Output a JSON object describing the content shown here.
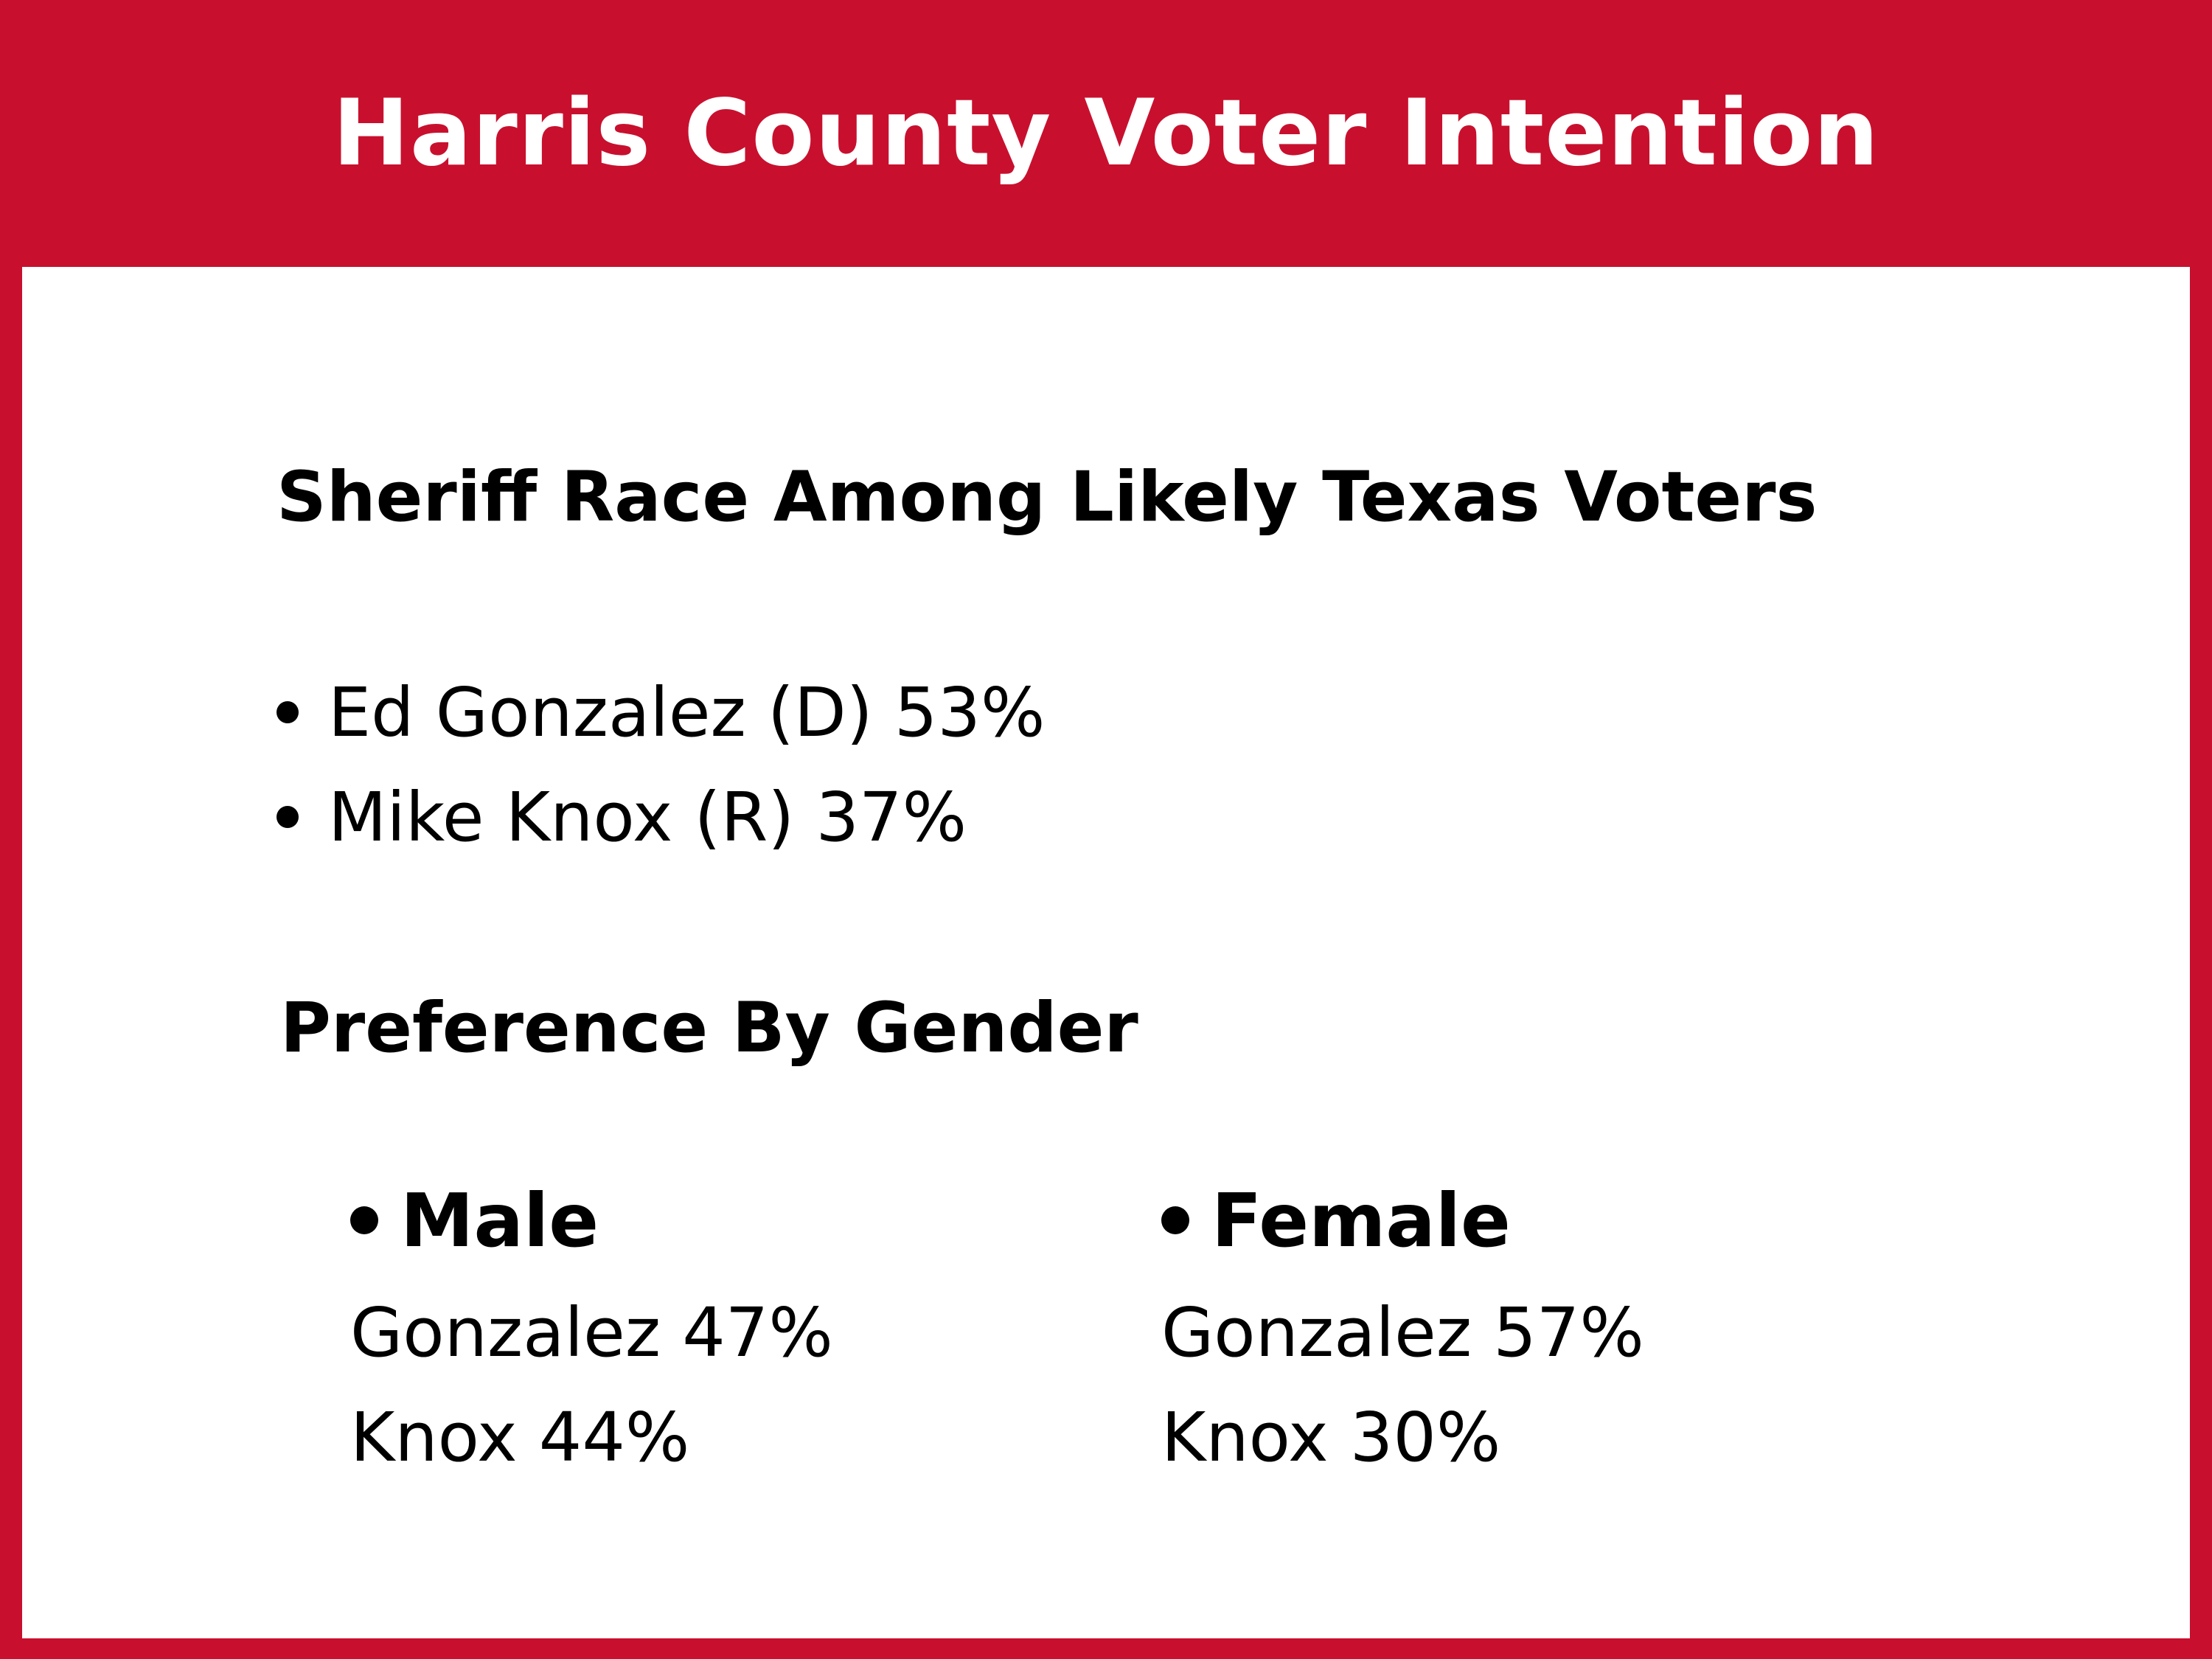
{
  "header": {
    "title": "Harris County Voter Intention",
    "background_color": "#c8102e",
    "text_color": "#ffffff"
  },
  "race": {
    "title": "Sheriff Race Among Likely Texas Voters",
    "candidates": [
      {
        "label": "Ed Gonzalez (D) 53%"
      },
      {
        "label": "Mike Knox (R) 37%"
      }
    ]
  },
  "gender": {
    "title": "Preference By Gender",
    "groups": [
      {
        "label": "Male",
        "lines": [
          "Gonzalez 47%",
          "Knox 44%"
        ]
      },
      {
        "label": "Female",
        "lines": [
          "Gonzalez 57%",
          "Knox 30%"
        ]
      }
    ]
  }
}
